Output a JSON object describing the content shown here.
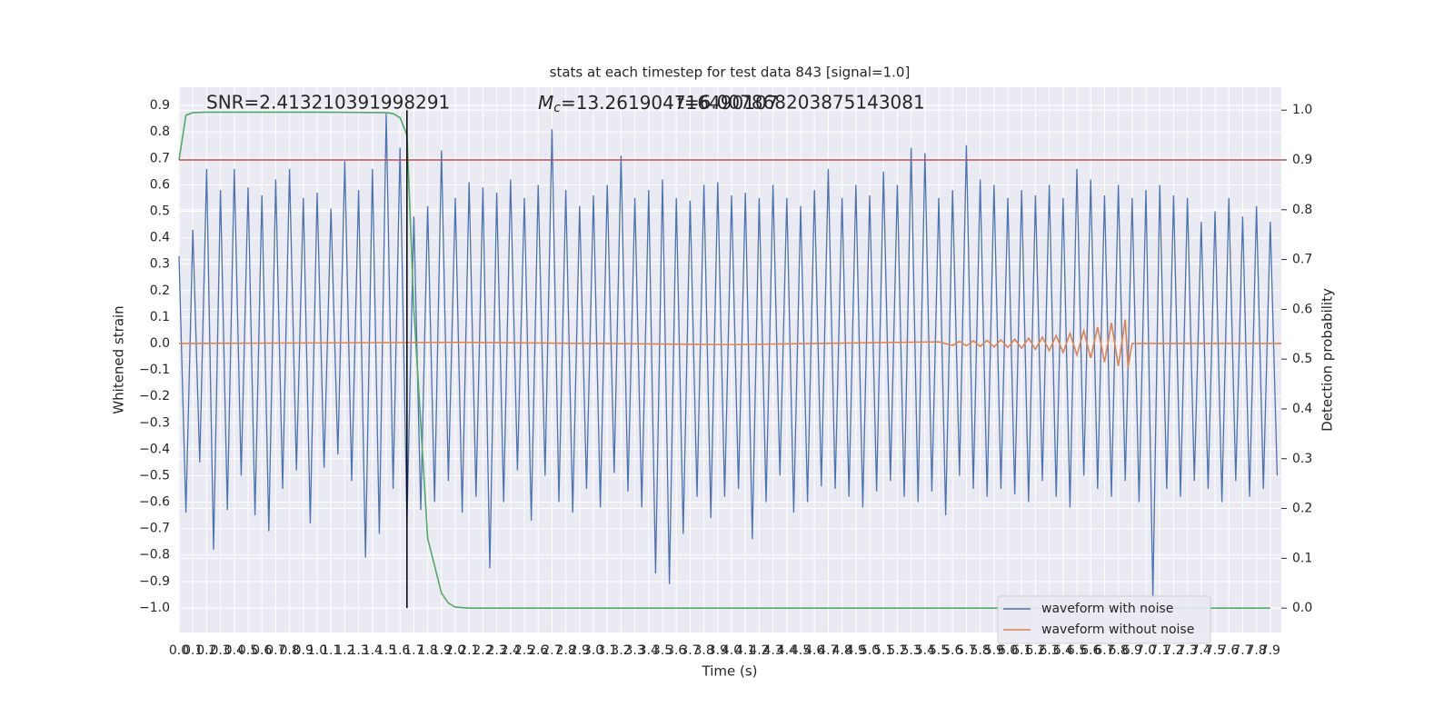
{
  "chart_data": {
    "type": "line",
    "title": "stats at each timestep for test data 843 [signal=1.0]",
    "xlabel": "Time (s)",
    "ylabel": "Whitened strain",
    "y2label": "Detection probability",
    "annotations": {
      "snr": "SNR=2.413210391998291",
      "mc_symbol": "M",
      "mc_sub": "c",
      "mc_text": "=13.261904716490107",
      "t_text": "t=6.007868203875143081"
    },
    "xlim": [
      0,
      7.98
    ],
    "ylim": [
      -1.093,
      0.969
    ],
    "y2lim": [
      -0.049,
      1.046
    ],
    "grid": true,
    "legend": "lower right",
    "xticks": [
      {
        "value": 0,
        "label": "0.0"
      },
      0.1,
      0.2,
      0.3,
      0.4,
      0.5,
      0.6,
      0.7,
      0.8,
      0.9,
      {
        "value": 1,
        "label": "1.0"
      },
      1.1,
      1.2,
      1.3,
      1.4,
      1.5,
      1.6,
      1.7,
      1.8,
      1.9,
      {
        "value": 2,
        "label": "2.0"
      },
      2.1,
      2.2,
      2.3,
      2.4,
      2.5,
      2.6,
      2.7,
      2.8,
      2.9,
      {
        "value": 3,
        "label": "3.0"
      },
      3.1,
      3.2,
      3.3,
      3.4,
      3.5,
      3.6,
      3.7,
      3.8,
      3.9,
      {
        "value": 4,
        "label": "4.0"
      },
      4.1,
      4.2,
      4.3,
      4.4,
      4.5,
      4.6,
      4.7,
      4.8,
      4.9,
      {
        "value": 5,
        "label": "5.0"
      },
      5.1,
      5.2,
      5.3,
      5.4,
      5.5,
      5.6,
      5.7,
      5.8,
      5.9,
      {
        "value": 6,
        "label": "6.0"
      },
      6.1,
      6.2,
      6.3,
      6.4,
      6.5,
      6.6,
      6.7,
      6.8,
      6.9,
      {
        "value": 7,
        "label": "7.0"
      },
      7.1,
      7.2,
      7.3,
      7.4,
      7.5,
      7.6,
      7.7,
      7.8,
      7.9
    ],
    "yticks": [
      {
        "value": -1,
        "label": "−1.0"
      },
      {
        "value": -0.9,
        "label": "−0.9"
      },
      {
        "value": -0.8,
        "label": "−0.8"
      },
      {
        "value": -0.7,
        "label": "−0.7"
      },
      {
        "value": -0.6,
        "label": "−0.6"
      },
      {
        "value": -0.5,
        "label": "−0.5"
      },
      {
        "value": -0.4,
        "label": "−0.4"
      },
      {
        "value": -0.3,
        "label": "−0.3"
      },
      {
        "value": -0.2,
        "label": "−0.2"
      },
      {
        "value": -0.1,
        "label": "−0.1"
      },
      {
        "value": 0,
        "label": "0.0"
      },
      0.1,
      0.2,
      0.3,
      0.4,
      0.5,
      0.6,
      0.7,
      0.8,
      0.9
    ],
    "y2ticks": [
      {
        "value": 0,
        "label": "0.0"
      },
      0.1,
      0.2,
      0.3,
      0.4,
      0.5,
      0.6,
      0.7,
      0.8,
      0.9,
      {
        "value": 1,
        "label": "1.0"
      }
    ],
    "series": [
      {
        "name": "waveform with noise",
        "color": "#4c72b0",
        "axis": "y",
        "x": [
          0,
          0.05,
          0.1,
          0.15,
          0.2,
          0.25,
          0.3,
          0.35,
          0.4,
          0.45,
          0.5,
          0.55,
          0.6,
          0.65,
          0.7,
          0.75,
          0.8,
          0.85,
          0.9,
          0.95,
          1,
          1.05,
          1.1,
          1.15,
          1.2,
          1.25,
          1.3,
          1.35,
          1.4,
          1.45,
          1.5,
          1.55,
          1.6,
          1.65,
          1.7,
          1.75,
          1.8,
          1.85,
          1.9,
          1.95,
          2,
          2.05,
          2.1,
          2.15,
          2.2,
          2.25,
          2.3,
          2.35,
          2.4,
          2.45,
          2.5,
          2.55,
          2.6,
          2.65,
          2.7,
          2.75,
          2.8,
          2.85,
          2.9,
          2.95,
          3,
          3.05,
          3.1,
          3.15,
          3.2,
          3.25,
          3.3,
          3.35,
          3.4,
          3.45,
          3.5,
          3.55,
          3.6,
          3.65,
          3.7,
          3.75,
          3.8,
          3.85,
          3.9,
          3.95,
          4,
          4.05,
          4.1,
          4.15,
          4.2,
          4.25,
          4.3,
          4.35,
          4.4,
          4.45,
          4.5,
          4.55,
          4.6,
          4.65,
          4.7,
          4.75,
          4.8,
          4.85,
          4.9,
          4.95,
          5,
          5.05,
          5.1,
          5.15,
          5.2,
          5.25,
          5.3,
          5.35,
          5.4,
          5.45,
          5.5,
          5.55,
          5.6,
          5.65,
          5.7,
          5.75,
          5.8,
          5.85,
          5.9,
          5.95,
          6,
          6.05,
          6.1,
          6.15,
          6.2,
          6.25,
          6.3,
          6.35,
          6.4,
          6.45,
          6.5,
          6.55,
          6.6,
          6.65,
          6.7,
          6.75,
          6.8,
          6.85,
          6.9,
          6.95,
          7,
          7.05,
          7.1,
          7.15,
          7.2,
          7.25,
          7.3,
          7.35,
          7.4,
          7.45,
          7.5,
          7.55,
          7.6,
          7.65,
          7.7,
          7.75,
          7.8,
          7.85,
          7.9,
          7.95
        ],
        "values": [
          0.33,
          -0.64,
          0.43,
          -0.45,
          0.66,
          -0.78,
          0.58,
          -0.63,
          0.66,
          -0.5,
          0.59,
          -0.65,
          0.56,
          -0.71,
          0.62,
          -0.55,
          0.66,
          -0.48,
          0.55,
          -0.68,
          0.57,
          -0.47,
          0.51,
          -0.42,
          0.69,
          -0.52,
          0.58,
          -0.81,
          0.66,
          -0.72,
          0.87,
          -0.55,
          0.74,
          -0.68,
          0.48,
          -0.63,
          0.52,
          -0.6,
          0.73,
          -0.52,
          0.55,
          -0.64,
          0.61,
          -0.58,
          0.59,
          -0.85,
          0.57,
          -0.6,
          0.62,
          -0.48,
          0.55,
          -0.67,
          0.6,
          -0.5,
          0.81,
          -0.6,
          0.58,
          -0.64,
          0.52,
          -0.55,
          0.56,
          -0.62,
          0.6,
          -0.49,
          0.71,
          -0.56,
          0.55,
          -0.62,
          0.58,
          -0.87,
          0.62,
          -0.91,
          0.55,
          -0.72,
          0.54,
          -0.58,
          0.6,
          -0.66,
          0.61,
          -0.58,
          0.56,
          -0.55,
          0.57,
          -0.74,
          0.55,
          -0.6,
          0.6,
          -0.5,
          0.55,
          -0.64,
          0.52,
          -0.6,
          0.58,
          -0.54,
          0.66,
          -0.55,
          0.55,
          -0.58,
          0.6,
          -0.62,
          0.56,
          -0.56,
          0.65,
          -0.52,
          0.6,
          -0.58,
          0.74,
          -0.6,
          0.72,
          -0.56,
          0.55,
          -0.65,
          0.58,
          -0.5,
          0.75,
          -0.55,
          0.62,
          -0.58,
          0.6,
          -0.55,
          0.55,
          -0.57,
          0.58,
          -0.6,
          0.56,
          -0.52,
          0.6,
          -0.58,
          0.55,
          -0.62,
          0.66,
          -0.5,
          0.62,
          -0.55,
          0.56,
          -0.58,
          0.6,
          -0.52,
          0.55,
          -0.6,
          0.58,
          -0.96,
          0.6,
          -0.55,
          0.56,
          -0.58,
          0.55,
          -0.52,
          0.46,
          -0.55,
          0.5,
          -0.6,
          0.55,
          -0.52,
          0.48,
          -0.58,
          0.52,
          -0.55,
          0.46,
          -0.5
        ]
      },
      {
        "name": "waveform without noise",
        "color": "#dd8452",
        "axis": "y",
        "x": [
          0,
          2,
          4,
          5.5,
          5.6,
          5.65,
          5.7,
          5.75,
          5.8,
          5.85,
          5.9,
          5.95,
          6,
          6.05,
          6.1,
          6.15,
          6.2,
          6.25,
          6.3,
          6.35,
          6.4,
          6.45,
          6.5,
          6.55,
          6.6,
          6.65,
          6.7,
          6.75,
          6.8,
          6.85,
          6.87,
          6.9,
          7.98
        ],
        "values": [
          0,
          0.004,
          -0.004,
          0.006,
          -0.007,
          0.008,
          -0.009,
          0.01,
          -0.011,
          0.012,
          -0.013,
          0.014,
          -0.015,
          0.016,
          -0.018,
          0.02,
          -0.022,
          0.024,
          -0.027,
          0.03,
          -0.034,
          0.038,
          -0.043,
          0.048,
          -0.055,
          0.062,
          -0.07,
          0.078,
          -0.085,
          0.09,
          -0.09,
          0,
          0
        ]
      },
      {
        "color": "#55a868",
        "axis": "y2",
        "x": [
          0,
          0.05,
          0.1,
          0.2,
          0.5,
          1,
          1.5,
          1.55,
          1.6,
          1.65,
          1.7,
          1.8,
          1.9,
          1.95,
          2,
          2.1,
          2.5,
          7.9
        ],
        "values": [
          0.9,
          0.99,
          0.995,
          0.996,
          0.996,
          0.996,
          0.995,
          0.993,
          0.985,
          0.95,
          0.6,
          0.14,
          0.03,
          0.01,
          0.002,
          0,
          0,
          0
        ]
      }
    ],
    "threshold": {
      "value": 0.9,
      "axis": "y2",
      "color": "#c44e52"
    },
    "vline": {
      "x": 1.65,
      "color": "#000000"
    }
  }
}
